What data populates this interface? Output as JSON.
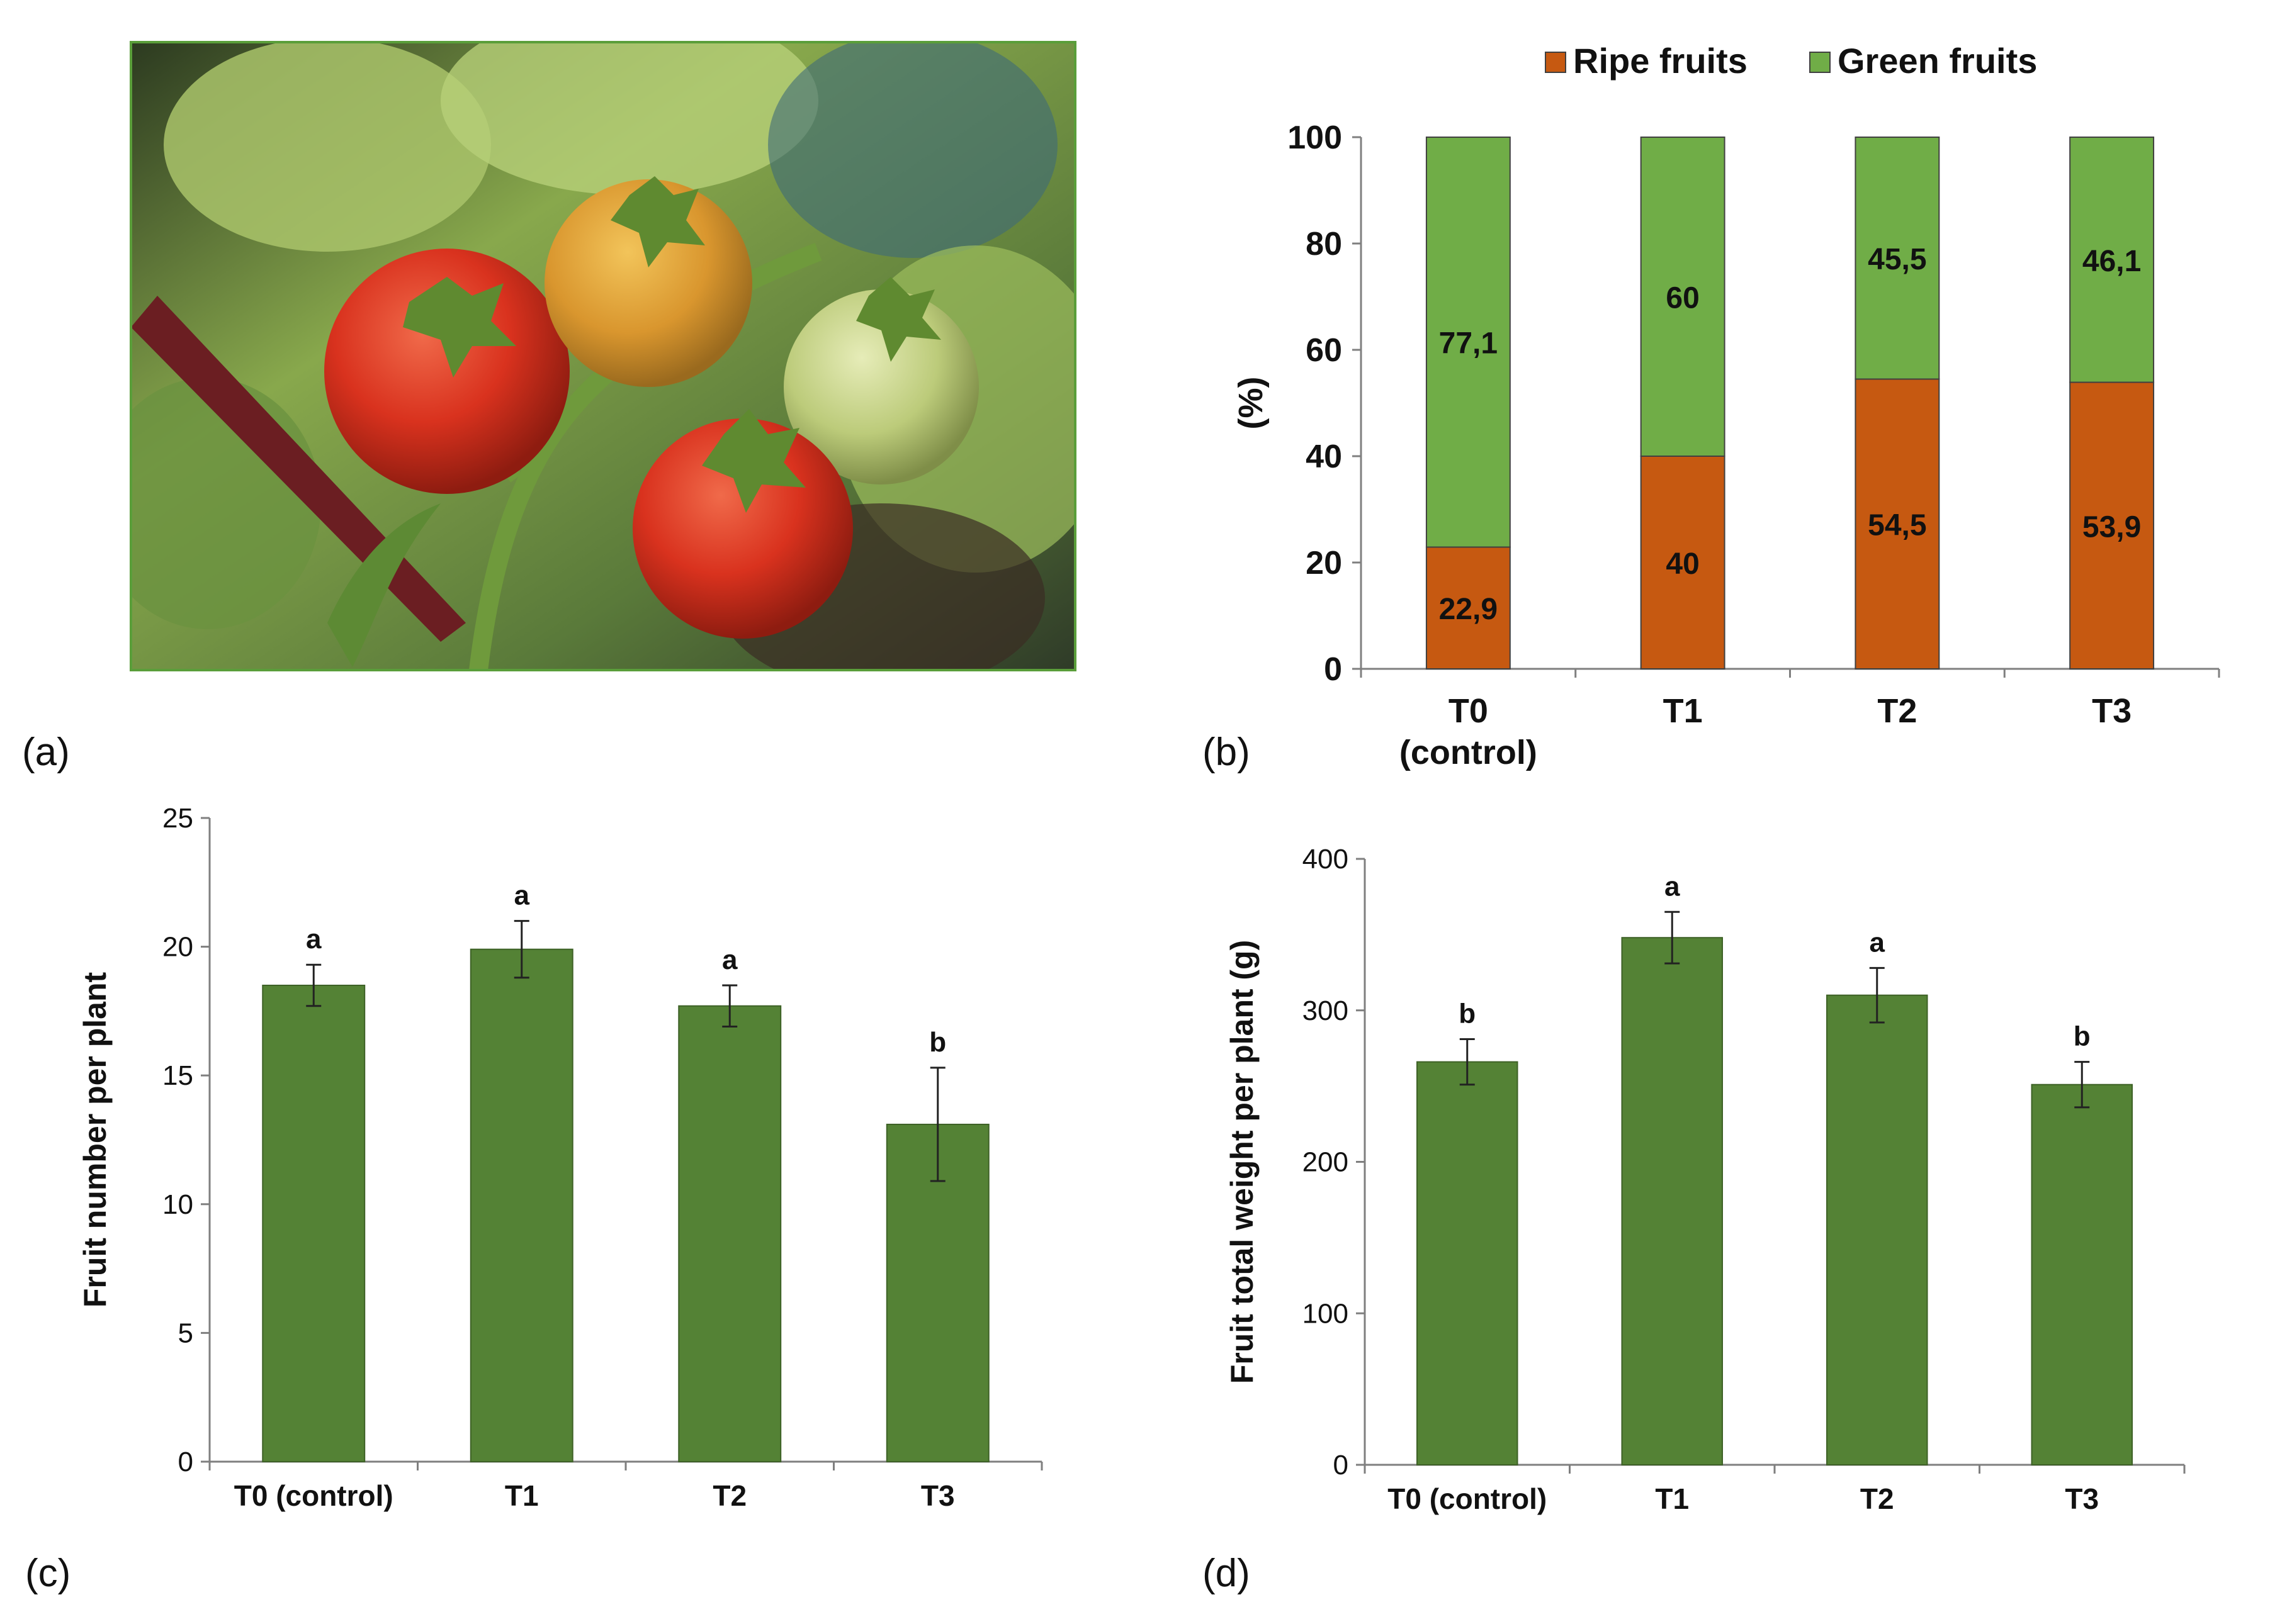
{
  "colors": {
    "bar_green": "#548235",
    "ripe": "#c65911",
    "green_fruit": "#70ad47",
    "axis": "#7f7f7f",
    "text": "#111111",
    "photo_border": "#5a9e3a"
  },
  "panels": {
    "a": {
      "label": "(a)"
    },
    "b": {
      "label": "(b)"
    },
    "c": {
      "label": "(c)"
    },
    "d": {
      "label": "(d)"
    }
  },
  "photo": {
    "icon": "tomato-cluster-photo"
  },
  "chart_data": [
    {
      "id": "b",
      "type": "bar",
      "stacked": true,
      "categories": [
        "T0 (control)",
        "T1",
        "T2",
        "T3"
      ],
      "category_lines": [
        [
          "T0",
          "(control)"
        ],
        [
          "T1"
        ],
        [
          "T2"
        ],
        [
          "T3"
        ]
      ],
      "series": [
        {
          "name": "Ripe fruits",
          "values": [
            22.9,
            40,
            54.5,
            53.9
          ],
          "labels": [
            "22,9",
            "40",
            "54,5",
            "53,9"
          ],
          "color": "#c65911"
        },
        {
          "name": "Green fruits",
          "values": [
            77.1,
            60,
            45.5,
            46.1
          ],
          "labels": [
            "77,1",
            "60",
            "45,5",
            "46,1"
          ],
          "color": "#70ad47"
        }
      ],
      "ylabel": "(%)",
      "xlabel": "",
      "ylim": [
        0,
        100
      ],
      "yticks": [
        0,
        20,
        40,
        60,
        80,
        100
      ],
      "legend": "top",
      "grid": false
    },
    {
      "id": "c",
      "type": "bar",
      "categories": [
        "T0 (control)",
        "T1",
        "T2",
        "T3"
      ],
      "values": [
        18.5,
        19.9,
        17.7,
        13.1
      ],
      "errors": [
        0.8,
        1.1,
        0.8,
        2.2
      ],
      "letters": [
        "a",
        "a",
        "a",
        "b"
      ],
      "ylabel": "Fruit number per plant",
      "xlabel": "",
      "ylim": [
        0,
        25
      ],
      "yticks": [
        0,
        5,
        10,
        15,
        20,
        25
      ],
      "grid": false
    },
    {
      "id": "d",
      "type": "bar",
      "categories": [
        "T0 (control)",
        "T1",
        "T2",
        "T3"
      ],
      "values": [
        266,
        348,
        310,
        251
      ],
      "errors": [
        15,
        17,
        18,
        15
      ],
      "letters": [
        "b",
        "a",
        "a",
        "b"
      ],
      "ylabel": "Fruit total weight per plant (g)",
      "xlabel": "",
      "ylim": [
        0,
        400
      ],
      "yticks": [
        0,
        100,
        200,
        300,
        400
      ],
      "grid": false
    }
  ]
}
